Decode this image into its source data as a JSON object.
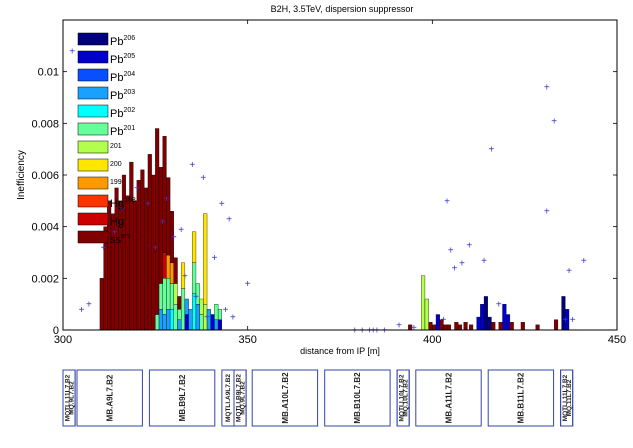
{
  "chart_data": {
    "type": "bar",
    "title": "B2H, 3.5TeV, dispersion suppressor",
    "xlabel": "distance from IP [m]",
    "ylabel": "Inefficiency",
    "xlim": [
      300,
      450
    ],
    "ylim": [
      0,
      0.012
    ],
    "xticks": [
      "300",
      "350",
      "400",
      "450"
    ],
    "yticks": [
      "0",
      "0.002",
      "0.004",
      "0.006",
      "0.008",
      "0.01"
    ],
    "grid": false,
    "legend_position": "top-left",
    "legend": [
      {
        "label": "Pb",
        "sup": "206",
        "color": "#00007f"
      },
      {
        "label": "Pb",
        "sup": "205",
        "color": "#0000cc"
      },
      {
        "label": "Pb",
        "sup": "204",
        "color": "#0a4fff"
      },
      {
        "label": "Pb",
        "sup": "203",
        "color": "#1aa0ff"
      },
      {
        "label": "Pb",
        "sup": "202",
        "color": "#00ffff"
      },
      {
        "label": "Pb",
        "sup": "201",
        "color": "#66ff99"
      },
      {
        "label": "",
        "sup": "201",
        "color": "#b2ff4d"
      },
      {
        "label": "",
        "sup": "200",
        "color": "#ffe600"
      },
      {
        "label": "",
        "sup": "199",
        "color": "#ff9900"
      },
      {
        "label": "Hg",
        "sup": "198",
        "color": "#ff3300"
      },
      {
        "label": "Hg",
        "sup": "",
        "color": "#cc0000"
      },
      {
        "label": "ss",
        "sup": "ers",
        "color": "#800000"
      }
    ],
    "bars": [
      {
        "x": 310.5,
        "total": 0.002,
        "segments": [
          [
            "#800000",
            0.002
          ]
        ]
      },
      {
        "x": 311.5,
        "total": 0.004,
        "segments": [
          [
            "#800000",
            0.004
          ]
        ]
      },
      {
        "x": 312.5,
        "total": 0.005,
        "segments": [
          [
            "#800000",
            0.005
          ]
        ]
      },
      {
        "x": 313.5,
        "total": 0.0045,
        "segments": [
          [
            "#800000",
            0.0045
          ]
        ]
      },
      {
        "x": 314.5,
        "total": 0.0055,
        "segments": [
          [
            "#800000",
            0.0055
          ]
        ]
      },
      {
        "x": 315.5,
        "total": 0.005,
        "segments": [
          [
            "#800000",
            0.005
          ]
        ]
      },
      {
        "x": 316.5,
        "total": 0.006,
        "segments": [
          [
            "#800000",
            0.006
          ]
        ]
      },
      {
        "x": 317.5,
        "total": 0.0052,
        "segments": [
          [
            "#800000",
            0.0052
          ]
        ]
      },
      {
        "x": 318.5,
        "total": 0.0065,
        "segments": [
          [
            "#800000",
            0.0065
          ]
        ]
      },
      {
        "x": 319.5,
        "total": 0.005,
        "segments": [
          [
            "#800000",
            0.005
          ]
        ]
      },
      {
        "x": 320.5,
        "total": 0.0058,
        "segments": [
          [
            "#800000",
            0.0058
          ]
        ]
      },
      {
        "x": 321.5,
        "total": 0.0062,
        "segments": [
          [
            "#800000",
            0.0062
          ]
        ]
      },
      {
        "x": 322.5,
        "total": 0.0055,
        "segments": [
          [
            "#800000",
            0.0055
          ]
        ]
      },
      {
        "x": 323.5,
        "total": 0.0068,
        "segments": [
          [
            "#800000",
            0.0068
          ]
        ]
      },
      {
        "x": 324.5,
        "total": 0.006,
        "segments": [
          [
            "#800000",
            0.006
          ]
        ]
      },
      {
        "x": 325.5,
        "total": 0.0078,
        "segments": [
          [
            "#66ff99",
            0.0006
          ],
          [
            "#800000",
            0.0072
          ]
        ]
      },
      {
        "x": 326.5,
        "total": 0.0063,
        "segments": [
          [
            "#1aa0ff",
            0.0008
          ],
          [
            "#66ff99",
            0.001
          ],
          [
            "#800000",
            0.0045
          ]
        ]
      },
      {
        "x": 327.5,
        "total": 0.0075,
        "segments": [
          [
            "#1aa0ff",
            0.0006
          ],
          [
            "#66ff99",
            0.0014
          ],
          [
            "#cc0000",
            0.001
          ],
          [
            "#800000",
            0.0045
          ]
        ]
      },
      {
        "x": 328.5,
        "total": 0.0059,
        "segments": [
          [
            "#1aa0ff",
            0.0008
          ],
          [
            "#66ff99",
            0.0012
          ],
          [
            "#ff9900",
            0.0009
          ],
          [
            "#800000",
            0.003
          ]
        ]
      },
      {
        "x": 329.5,
        "total": 0.0046,
        "segments": [
          [
            "#00ffff",
            0.0008
          ],
          [
            "#66ff99",
            0.001
          ],
          [
            "#ff9900",
            0.0008
          ],
          [
            "#800000",
            0.002
          ]
        ]
      },
      {
        "x": 330.5,
        "total": 0.0028,
        "segments": [
          [
            "#66ff99",
            0.001
          ],
          [
            "#b2ff4d",
            0.0008
          ],
          [
            "#800000",
            0.001
          ]
        ]
      },
      {
        "x": 331.5,
        "total": 0.0013,
        "segments": [
          [
            "#1aa0ff",
            0.0004
          ],
          [
            "#66ff99",
            0.0004
          ],
          [
            "#800000",
            0.0005
          ]
        ]
      },
      {
        "x": 332.5,
        "total": 0.0026,
        "segments": [
          [
            "#66ff99",
            0.0016
          ],
          [
            "#ffe600",
            0.001
          ]
        ]
      },
      {
        "x": 333.5,
        "total": 0.0012,
        "segments": [
          [
            "#0000cc",
            0.0006
          ],
          [
            "#1aa0ff",
            0.0006
          ]
        ]
      },
      {
        "x": 334.5,
        "total": 0.0008,
        "segments": [
          [
            "#1aa0ff",
            0.0008
          ]
        ]
      },
      {
        "x": 335.5,
        "total": 0.0038,
        "segments": [
          [
            "#00ffff",
            0.0014
          ],
          [
            "#66ff99",
            0.0012
          ],
          [
            "#ffe600",
            0.0012
          ]
        ]
      },
      {
        "x": 336.5,
        "total": 0.0018,
        "segments": [
          [
            "#1aa0ff",
            0.001
          ],
          [
            "#66ff99",
            0.0008
          ]
        ]
      },
      {
        "x": 337.5,
        "total": 0.0012,
        "segments": [
          [
            "#66ff99",
            0.0006
          ],
          [
            "#b2ff4d",
            0.0006
          ]
        ]
      },
      {
        "x": 338.5,
        "total": 0.0045,
        "segments": [
          [
            "#b2ff4d",
            0.001
          ],
          [
            "#ffe600",
            0.0035
          ]
        ]
      },
      {
        "x": 339.5,
        "total": 0.0008,
        "segments": [
          [
            "#1aa0ff",
            0.0008
          ]
        ]
      },
      {
        "x": 340.5,
        "total": 0.0006,
        "segments": [
          [
            "#0000cc",
            0.0006
          ]
        ]
      },
      {
        "x": 341.5,
        "total": 0.001,
        "segments": [
          [
            "#1aa0ff",
            0.0004
          ],
          [
            "#66ff99",
            0.0006
          ]
        ]
      },
      {
        "x": 342.5,
        "total": 0.0008,
        "segments": [
          [
            "#0000cc",
            0.0004
          ],
          [
            "#66ff99",
            0.0004
          ]
        ]
      },
      {
        "x": 394.0,
        "total": 0.0002,
        "segments": [
          [
            "#800000",
            0.0002
          ]
        ]
      },
      {
        "x": 397.5,
        "total": 0.0021,
        "segments": [
          [
            "#b2ff4d",
            0.0021
          ]
        ]
      },
      {
        "x": 398.5,
        "total": 0.0012,
        "segments": [
          [
            "#b2ff4d",
            0.0012
          ]
        ]
      },
      {
        "x": 399.5,
        "total": 0.0003,
        "segments": [
          [
            "#800000",
            0.0003
          ]
        ]
      },
      {
        "x": 400.5,
        "total": 0.0002,
        "segments": [
          [
            "#800000",
            0.0002
          ]
        ]
      },
      {
        "x": 401.5,
        "total": 0.0006,
        "segments": [
          [
            "#0000cc",
            0.0006
          ]
        ]
      },
      {
        "x": 402.5,
        "total": 0.0004,
        "segments": [
          [
            "#800000",
            0.0004
          ]
        ]
      },
      {
        "x": 403.5,
        "total": 0.0002,
        "segments": [
          [
            "#800000",
            0.0002
          ]
        ]
      },
      {
        "x": 404.5,
        "total": 0.0002,
        "segments": [
          [
            "#800000",
            0.0002
          ]
        ]
      },
      {
        "x": 406.5,
        "total": 0.0003,
        "segments": [
          [
            "#800000",
            0.0003
          ]
        ]
      },
      {
        "x": 407.5,
        "total": 0.0002,
        "segments": [
          [
            "#800000",
            0.0002
          ]
        ]
      },
      {
        "x": 409.0,
        "total": 0.0003,
        "segments": [
          [
            "#800000",
            0.0003
          ]
        ]
      },
      {
        "x": 410.5,
        "total": 0.0002,
        "segments": [
          [
            "#800000",
            0.0002
          ]
        ]
      },
      {
        "x": 412.5,
        "total": 0.0005,
        "segments": [
          [
            "#0000cc",
            0.0005
          ]
        ]
      },
      {
        "x": 413.5,
        "total": 0.001,
        "segments": [
          [
            "#0000cc",
            0.001
          ]
        ]
      },
      {
        "x": 414.5,
        "total": 0.0013,
        "segments": [
          [
            "#00007f",
            0.0013
          ]
        ]
      },
      {
        "x": 415.5,
        "total": 0.0005,
        "segments": [
          [
            "#00007f",
            0.0005
          ]
        ]
      },
      {
        "x": 416.5,
        "total": 0.0003,
        "segments": [
          [
            "#800000",
            0.0003
          ]
        ]
      },
      {
        "x": 418.5,
        "total": 0.0003,
        "segments": [
          [
            "#800000",
            0.0003
          ]
        ]
      },
      {
        "x": 419.5,
        "total": 0.001,
        "segments": [
          [
            "#0000cc",
            0.001
          ]
        ]
      },
      {
        "x": 420.5,
        "total": 0.0006,
        "segments": [
          [
            "#0000cc",
            0.0006
          ]
        ]
      },
      {
        "x": 421.5,
        "total": 0.0003,
        "segments": [
          [
            "#800000",
            0.0003
          ]
        ]
      },
      {
        "x": 424.5,
        "total": 0.0003,
        "segments": [
          [
            "#800000",
            0.0003
          ]
        ]
      },
      {
        "x": 428.5,
        "total": 0.0002,
        "segments": [
          [
            "#800000",
            0.0002
          ]
        ]
      },
      {
        "x": 433.5,
        "total": 0.0004,
        "segments": [
          [
            "#800000",
            0.0004
          ]
        ]
      },
      {
        "x": 435.5,
        "total": 0.0013,
        "segments": [
          [
            "#00007f",
            0.0013
          ]
        ]
      },
      {
        "x": 436.5,
        "total": 0.0008,
        "segments": [
          [
            "#0000cc",
            0.0008
          ]
        ]
      }
    ],
    "markers": {
      "symbol": "+",
      "color": "#3333cc",
      "points": [
        [
          302.5,
          0.0108
        ],
        [
          305,
          0.0008
        ],
        [
          307,
          0.001
        ],
        [
          311,
          0.0032
        ],
        [
          314,
          0.0038
        ],
        [
          316,
          0.0047
        ],
        [
          320,
          0.0055
        ],
        [
          323,
          0.0049
        ],
        [
          325,
          0.0032
        ],
        [
          327,
          0.0042
        ],
        [
          328,
          0.0051
        ],
        [
          330,
          0.0036
        ],
        [
          332,
          0.0039
        ],
        [
          333,
          0.0021
        ],
        [
          335,
          0.0064
        ],
        [
          336,
          0.0013
        ],
        [
          338,
          0.0059
        ],
        [
          339,
          0.0005
        ],
        [
          341,
          0.0028
        ],
        [
          343,
          0.0049
        ],
        [
          344,
          0.0008
        ],
        [
          345,
          0.0043
        ],
        [
          346,
          0.0005
        ],
        [
          350,
          0.0018
        ],
        [
          379,
          0.0
        ],
        [
          381,
          0.0
        ],
        [
          383,
          0.0
        ],
        [
          384,
          0.0
        ],
        [
          385,
          0.0
        ],
        [
          387,
          0.0
        ],
        [
          391,
          0.0002
        ],
        [
          395,
          0.0001
        ],
        [
          403,
          0.0004
        ],
        [
          404,
          0.005
        ],
        [
          405,
          0.0031
        ],
        [
          406,
          0.0024
        ],
        [
          408,
          0.0026
        ],
        [
          410,
          0.0033
        ],
        [
          414,
          0.0027
        ],
        [
          416,
          0.007
        ],
        [
          418,
          0.001
        ],
        [
          431,
          0.0094
        ],
        [
          431,
          0.0046
        ],
        [
          433,
          0.0081
        ],
        [
          436,
          0.0004
        ],
        [
          437,
          0.0023
        ],
        [
          438,
          0.0004
        ],
        [
          441,
          0.0027
        ]
      ]
    },
    "elements": [
      {
        "name": "MQTLI.11L7.B2",
        "x0": 300.0,
        "x1": 302.6,
        "stack": true
      },
      {
        "name": "MQ.9L7.B2",
        "x0": 300.0,
        "x1": 302.6,
        "stack": true
      },
      {
        "name": "MB.A9L7.B2",
        "x0": 303.0,
        "x1": 317.0,
        "stack": false
      },
      {
        "name": "MB.B9L7.B2",
        "x0": 318.5,
        "x1": 332.5,
        "stack": false
      },
      {
        "name": "MQTLI.A9L7.B2",
        "x0": 334.0,
        "x1": 336.6,
        "stack": true
      },
      {
        "name": "MQTLI.B9L7.B2",
        "x0": 336.6,
        "x1": 339.2,
        "stack": true
      },
      {
        "name": "MQ.9L7.B2",
        "x0": 336.6,
        "x1": 339.2,
        "stack": true
      },
      {
        "name": "MB.A10L7.B2",
        "x0": 340.5,
        "x1": 354.5,
        "stack": false
      },
      {
        "name": "MB.B10L7.B2",
        "x0": 356.0,
        "x1": 370.0,
        "stack": false
      },
      {
        "name": "MQTLI.10L7.B2",
        "x0": 371.5,
        "x1": 374.1,
        "stack": true
      },
      {
        "name": "MQ.10L7.B2",
        "x0": 371.5,
        "x1": 374.1,
        "stack": true
      },
      {
        "name": "MB.A11L7.B2",
        "x0": 375.5,
        "x1": 389.5,
        "stack": false
      },
      {
        "name": "MB.B11L7.B2",
        "x0": 391.0,
        "x1": 405.0,
        "stack": false
      },
      {
        "name": "MQTLI.11L7.B2",
        "x0": 406.5,
        "x1": 409.1,
        "stack": true
      },
      {
        "name": "MQ.11L7.B2",
        "x0": 406.5,
        "x1": 409.1,
        "stack": true
      }
    ]
  }
}
